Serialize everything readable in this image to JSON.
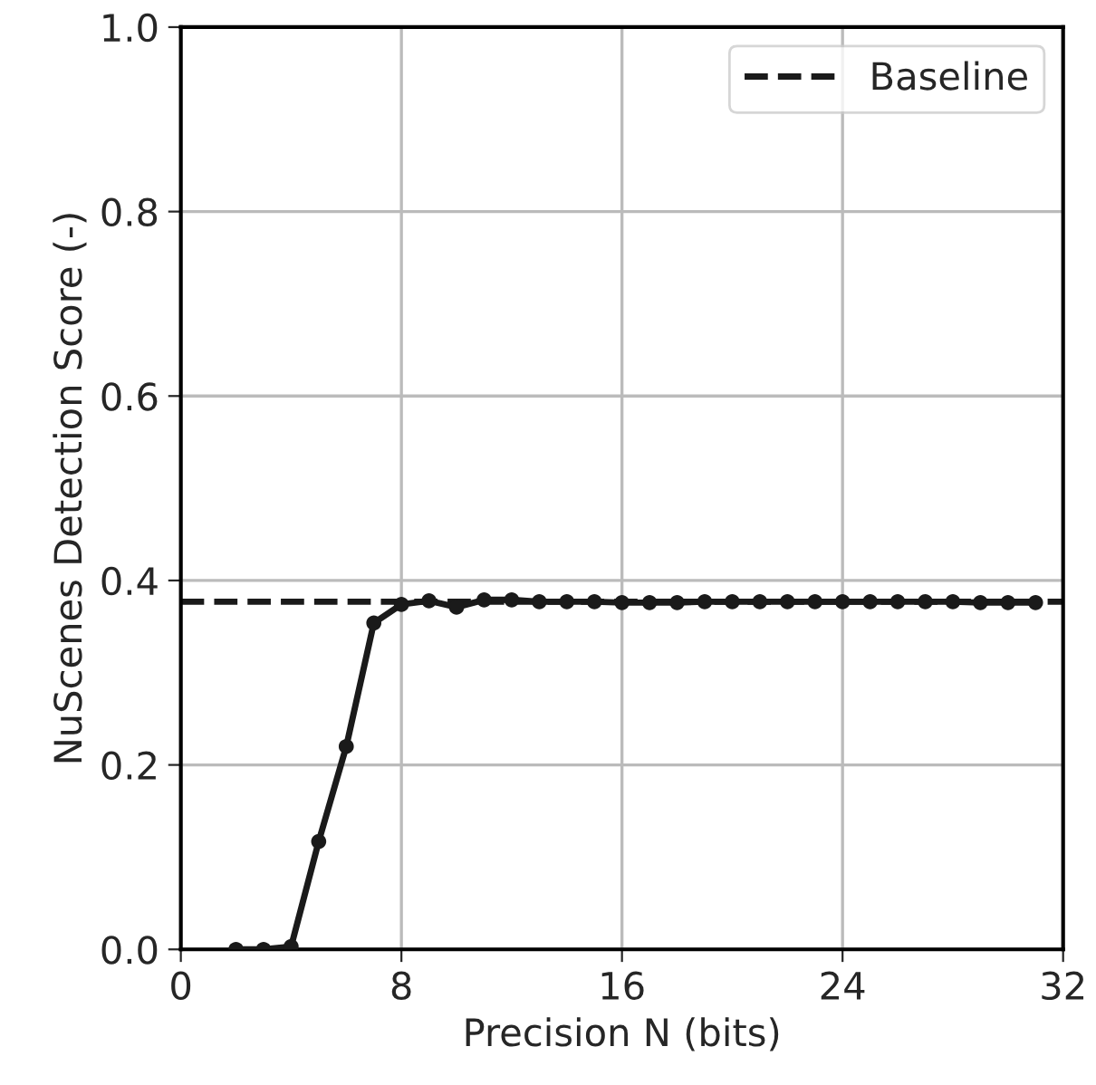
{
  "chart_data": {
    "type": "line",
    "xlabel": "Precision N (bits)",
    "ylabel": "NuScenes Detection Score (-)",
    "x": [
      2,
      3,
      4,
      5,
      6,
      7,
      8,
      9,
      10,
      11,
      12,
      13,
      14,
      15,
      16,
      17,
      18,
      19,
      20,
      21,
      22,
      23,
      24,
      25,
      26,
      27,
      28,
      29,
      30,
      31
    ],
    "series": [
      {
        "color": "#1a1a1a",
        "values": [
          0.0,
          0.0,
          0.003,
          0.117,
          0.22,
          0.354,
          0.374,
          0.378,
          0.371,
          0.379,
          0.379,
          0.377,
          0.377,
          0.377,
          0.376,
          0.376,
          0.376,
          0.377,
          0.377,
          0.377,
          0.377,
          0.377,
          0.377,
          0.377,
          0.377,
          0.377,
          0.377,
          0.376,
          0.376,
          0.376
        ]
      }
    ],
    "ref_lines": [
      {
        "axis": "y",
        "value": 0.377,
        "label": "Baseline",
        "color": "#1a1a1a",
        "line_style": "dashed"
      }
    ],
    "xlim": [
      0,
      32
    ],
    "xticks": [
      0,
      8,
      16,
      24,
      32
    ],
    "ylim": [
      0,
      1.0
    ],
    "yticks": [
      {
        "value": 0,
        "label": "0.0"
      },
      {
        "value": 0.2,
        "label": "0.2"
      },
      {
        "value": 0.4,
        "label": "0.4"
      },
      {
        "value": 0.6,
        "label": "0.6"
      },
      {
        "value": 0.8,
        "label": "0.8"
      },
      {
        "value": 1.0,
        "label": "1.0"
      }
    ],
    "grid": true,
    "legend": "top right",
    "marker": "circle",
    "line_style": "solid"
  }
}
